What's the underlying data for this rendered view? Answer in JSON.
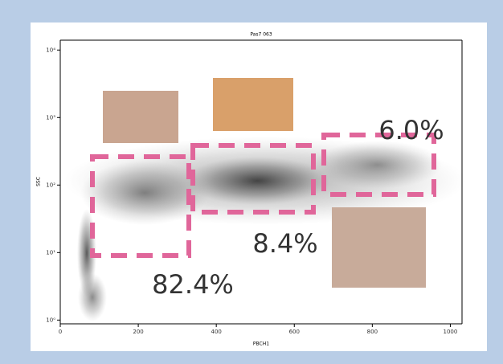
{
  "chart_data": {
    "type": "scatter",
    "title": "Pas7 063",
    "x_label": "PBCH1",
    "y_label": "SSC",
    "xlim": [
      0,
      1030
    ],
    "xticks": [
      0,
      200,
      400,
      600,
      800,
      1000
    ],
    "ylim": [
      0.88,
      14000
    ],
    "log_y": true,
    "yticks": [
      {
        "value": 1,
        "label": "10⁰"
      },
      {
        "value": 10,
        "label": "10¹"
      },
      {
        "value": 100,
        "label": "10²"
      },
      {
        "value": 1000,
        "label": "10³"
      },
      {
        "value": 10000,
        "label": "10⁴"
      }
    ],
    "gate_color": "#e0669a",
    "gates": [
      {
        "label": "82.4%"
      },
      {
        "label": "8.4%"
      },
      {
        "label": "6.0%"
      }
    ]
  }
}
